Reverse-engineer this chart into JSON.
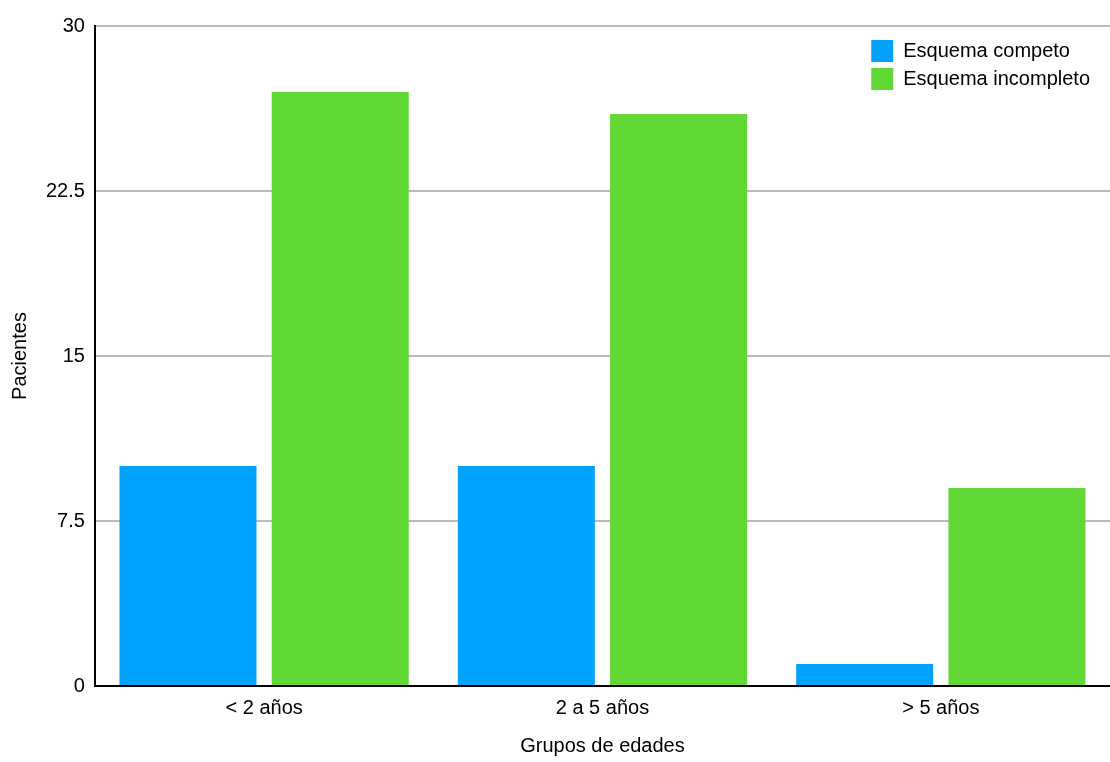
{
  "chart_data": {
    "type": "bar",
    "xlabel": "Grupos de edades",
    "ylabel": "Pacientes",
    "categories": [
      "< 2 años",
      "2 a 5 años",
      "> 5 años"
    ],
    "series": [
      {
        "name": "Esquema competo",
        "color": "#00a2ff",
        "values": [
          10,
          10,
          1
        ]
      },
      {
        "name": "Esquema incompleto",
        "color": "#61d836",
        "values": [
          27,
          26,
          9
        ]
      }
    ],
    "ylim": [
      0,
      30
    ],
    "yticks": [
      0,
      7.5,
      15,
      22.5,
      30
    ],
    "grid": "y",
    "legend": "top right"
  }
}
